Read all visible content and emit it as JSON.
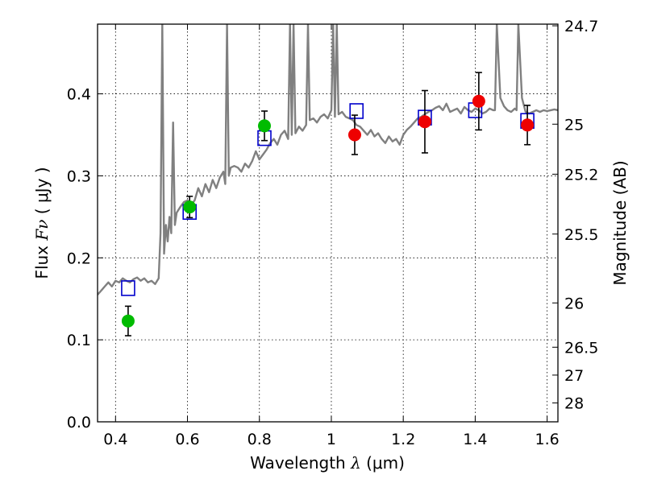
{
  "chart_data": {
    "type": "scatter",
    "xlabel": {
      "prefix": "Wavelength",
      "symbol": "λ",
      "unit": "(μm)"
    },
    "ylabel": {
      "prefix": "Flux",
      "symbol": "Fν",
      "unit": "( μJy )"
    },
    "ylabel_right": "Magnitude (AB)",
    "xlim": [
      0.35,
      1.63
    ],
    "ylim": [
      0.0,
      0.485
    ],
    "x_ticks": [
      0.4,
      0.6,
      0.8,
      1.0,
      1.2,
      1.4,
      1.6
    ],
    "x_tick_labels": [
      "0.4",
      "0.6",
      "0.8",
      "1",
      "1.2",
      "1.4",
      "1.6"
    ],
    "y_ticks": [
      0.0,
      0.1,
      0.2,
      0.3,
      0.4
    ],
    "y_tick_labels": [
      "0.0",
      "0.1",
      "0.2",
      "0.3",
      "0.4"
    ],
    "right_ticks": [
      {
        "flux": 0.483,
        "label": "24.7"
      },
      {
        "flux": 0.363,
        "label": "25"
      },
      {
        "flux": 0.302,
        "label": "25.2"
      },
      {
        "flux": 0.229,
        "label": "25.5"
      },
      {
        "flux": 0.145,
        "label": "26"
      },
      {
        "flux": 0.091,
        "label": "26.5"
      },
      {
        "flux": 0.057,
        "label": "27"
      },
      {
        "flux": 0.023,
        "label": "28"
      }
    ],
    "grid": true,
    "series": [
      {
        "kind": "model_spectrum",
        "color": "#808080",
        "x": [
          0.35,
          0.36,
          0.37,
          0.38,
          0.39,
          0.4,
          0.41,
          0.42,
          0.43,
          0.44,
          0.45,
          0.46,
          0.47,
          0.48,
          0.49,
          0.5,
          0.51,
          0.52,
          0.525,
          0.53,
          0.535,
          0.54,
          0.545,
          0.55,
          0.555,
          0.56,
          0.565,
          0.57,
          0.58,
          0.59,
          0.6,
          0.61,
          0.62,
          0.63,
          0.64,
          0.65,
          0.66,
          0.67,
          0.68,
          0.69,
          0.7,
          0.705,
          0.71,
          0.715,
          0.72,
          0.73,
          0.74,
          0.75,
          0.76,
          0.77,
          0.78,
          0.79,
          0.8,
          0.81,
          0.82,
          0.83,
          0.84,
          0.85,
          0.86,
          0.87,
          0.88,
          0.885,
          0.89,
          0.895,
          0.9,
          0.91,
          0.92,
          0.93,
          0.935,
          0.94,
          0.95,
          0.96,
          0.97,
          0.98,
          0.99,
          1.0,
          1.005,
          1.01,
          1.015,
          1.02,
          1.03,
          1.04,
          1.05,
          1.06,
          1.07,
          1.08,
          1.09,
          1.1,
          1.11,
          1.12,
          1.13,
          1.14,
          1.15,
          1.16,
          1.17,
          1.18,
          1.19,
          1.2,
          1.21,
          1.22,
          1.23,
          1.24,
          1.25,
          1.26,
          1.27,
          1.28,
          1.29,
          1.3,
          1.31,
          1.32,
          1.33,
          1.34,
          1.35,
          1.36,
          1.37,
          1.38,
          1.39,
          1.4,
          1.41,
          1.42,
          1.43,
          1.44,
          1.45,
          1.455,
          1.46,
          1.465,
          1.47,
          1.48,
          1.49,
          1.5,
          1.51,
          1.515,
          1.52,
          1.53,
          1.54,
          1.55,
          1.56,
          1.57,
          1.58,
          1.59,
          1.6,
          1.61,
          1.62,
          1.63
        ],
        "y": [
          0.155,
          0.16,
          0.165,
          0.17,
          0.165,
          0.172,
          0.17,
          0.175,
          0.172,
          0.17,
          0.174,
          0.176,
          0.172,
          0.175,
          0.17,
          0.172,
          0.168,
          0.175,
          0.23,
          0.485,
          0.205,
          0.24,
          0.22,
          0.25,
          0.23,
          0.365,
          0.24,
          0.255,
          0.262,
          0.268,
          0.27,
          0.265,
          0.27,
          0.285,
          0.275,
          0.29,
          0.28,
          0.295,
          0.285,
          0.298,
          0.305,
          0.29,
          0.485,
          0.3,
          0.31,
          0.312,
          0.31,
          0.305,
          0.315,
          0.31,
          0.318,
          0.33,
          0.32,
          0.326,
          0.332,
          0.34,
          0.345,
          0.338,
          0.35,
          0.355,
          0.345,
          0.485,
          0.35,
          0.485,
          0.352,
          0.36,
          0.355,
          0.362,
          0.485,
          0.368,
          0.37,
          0.365,
          0.372,
          0.375,
          0.37,
          0.38,
          0.485,
          0.372,
          0.485,
          0.375,
          0.378,
          0.372,
          0.37,
          0.368,
          0.362,
          0.36,
          0.355,
          0.35,
          0.356,
          0.348,
          0.352,
          0.345,
          0.34,
          0.348,
          0.342,
          0.345,
          0.338,
          0.35,
          0.356,
          0.36,
          0.365,
          0.37,
          0.372,
          0.375,
          0.378,
          0.38,
          0.383,
          0.385,
          0.38,
          0.388,
          0.378,
          0.38,
          0.382,
          0.376,
          0.384,
          0.38,
          0.378,
          0.382,
          0.38,
          0.376,
          0.378,
          0.382,
          0.38,
          0.38,
          0.485,
          0.44,
          0.395,
          0.385,
          0.38,
          0.378,
          0.382,
          0.38,
          0.485,
          0.395,
          0.378,
          0.376,
          0.378,
          0.38,
          0.378,
          0.38,
          0.379,
          0.38,
          0.381,
          0.38
        ]
      },
      {
        "kind": "model_photometry",
        "marker": "open-square",
        "color": "#0000cc",
        "x": [
          0.435,
          0.606,
          0.814,
          1.07,
          1.26,
          1.4,
          1.545
        ],
        "y": [
          0.163,
          0.256,
          0.346,
          0.379,
          0.371,
          0.38,
          0.367
        ]
      },
      {
        "kind": "observed_optical",
        "marker": "filled-circle",
        "color": "#00bb00",
        "x": [
          0.435,
          0.606,
          0.814
        ],
        "y": [
          0.123,
          0.262,
          0.361
        ],
        "yerr": [
          0.018,
          0.013,
          0.018
        ]
      },
      {
        "kind": "observed_nir",
        "marker": "filled-circle",
        "color": "#ee0000",
        "x": [
          1.065,
          1.26,
          1.41,
          1.545
        ],
        "y": [
          0.35,
          0.366,
          0.391,
          0.362
        ],
        "yerr": [
          0.024,
          0.038,
          0.035,
          0.024
        ]
      }
    ]
  }
}
